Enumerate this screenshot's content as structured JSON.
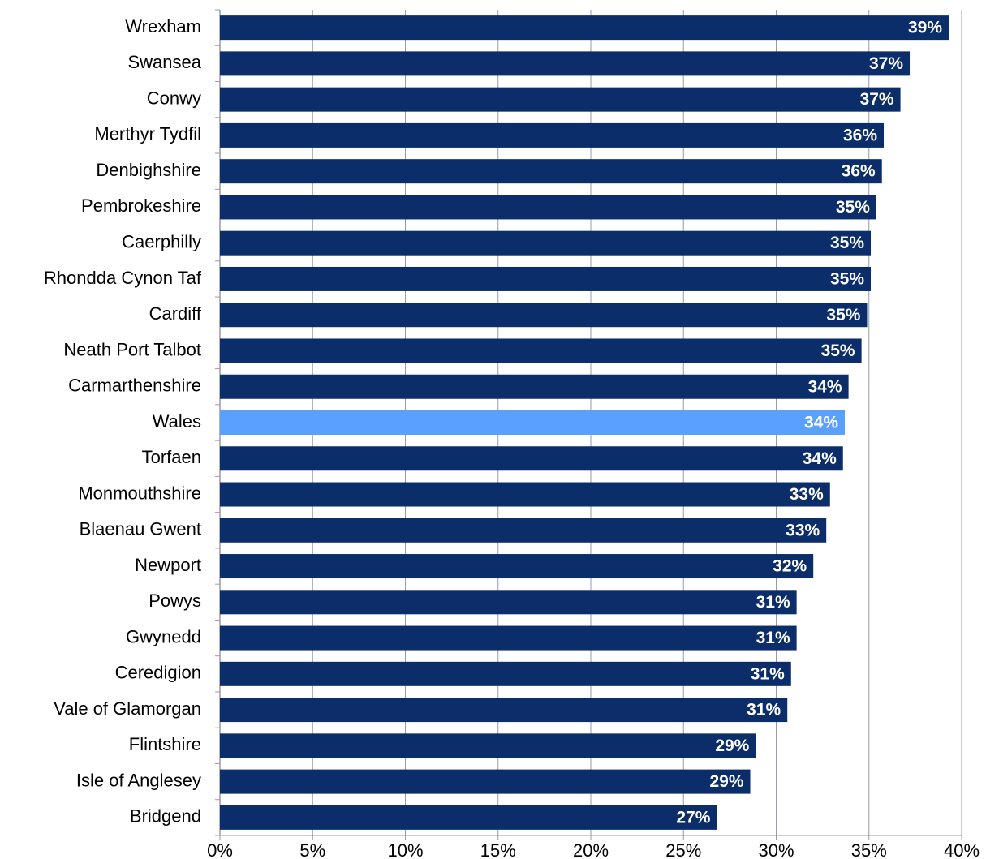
{
  "chart_data": {
    "type": "bar",
    "orientation": "horizontal",
    "categories": [
      "Wrexham",
      "Swansea",
      "Conwy",
      "Merthyr Tydfil",
      "Denbighshire",
      "Pembrokeshire",
      "Caerphilly",
      "Rhondda Cynon Taf",
      "Cardiff",
      "Neath Port Talbot",
      "Carmarthenshire",
      "Wales",
      "Torfaen",
      "Monmouthshire",
      "Blaenau Gwent",
      "Newport",
      "Powys",
      "Gwynedd",
      "Ceredigion",
      "Vale of Glamorgan",
      "Flintshire",
      "Isle of Anglesey",
      "Bridgend"
    ],
    "values": [
      39.3,
      37.2,
      36.7,
      35.8,
      35.7,
      35.4,
      35.1,
      35.1,
      34.9,
      34.6,
      33.9,
      33.7,
      33.6,
      32.9,
      32.7,
      32.0,
      31.1,
      31.1,
      30.8,
      30.6,
      28.9,
      28.6,
      26.8
    ],
    "value_labels": [
      "39%",
      "37%",
      "37%",
      "36%",
      "36%",
      "35%",
      "35%",
      "35%",
      "35%",
      "35%",
      "34%",
      "34%",
      "34%",
      "33%",
      "33%",
      "32%",
      "31%",
      "31%",
      "31%",
      "31%",
      "29%",
      "29%",
      "27%"
    ],
    "colors": [
      "#0b2d69",
      "#0b2d69",
      "#0b2d69",
      "#0b2d69",
      "#0b2d69",
      "#0b2d69",
      "#0b2d69",
      "#0b2d69",
      "#0b2d69",
      "#0b2d69",
      "#0b2d69",
      "#5aa0ff",
      "#0b2d69",
      "#0b2d69",
      "#0b2d69",
      "#0b2d69",
      "#0b2d69",
      "#0b2d69",
      "#0b2d69",
      "#0b2d69",
      "#0b2d69",
      "#0b2d69",
      "#0b2d69"
    ],
    "xlim": [
      0,
      40
    ],
    "xticks": [
      {
        "value": 0,
        "label": "0%"
      },
      {
        "value": 5,
        "label": "5%"
      },
      {
        "value": 10,
        "label": "10%"
      },
      {
        "value": 15,
        "label": "15%"
      },
      {
        "value": 20,
        "label": "20%"
      },
      {
        "value": 25,
        "label": "25%"
      },
      {
        "value": 30,
        "label": "30%"
      },
      {
        "value": 35,
        "label": "35%"
      },
      {
        "value": 40,
        "label": "40%"
      }
    ],
    "grid": true
  }
}
